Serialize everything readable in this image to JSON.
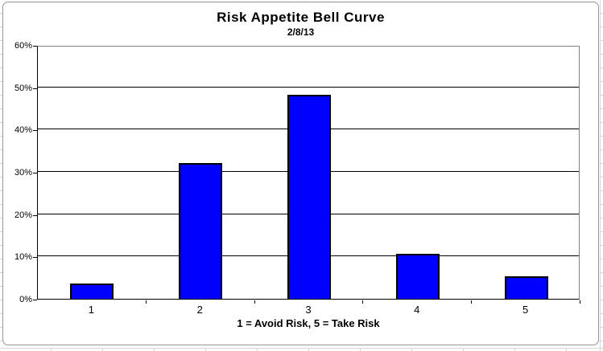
{
  "chart_data": {
    "type": "bar",
    "title": "Risk Appetite Bell Curve",
    "subtitle": "2/8/13",
    "categories": [
      "1",
      "2",
      "3",
      "4",
      "5"
    ],
    "values": [
      3.6,
      32.1,
      48.2,
      10.7,
      5.4
    ],
    "xlabel": "1 = Avoid Risk, 5 = Take Risk",
    "ylabel": "",
    "ylim": [
      0,
      60
    ],
    "y_ticks": [
      "0%",
      "10%",
      "20%",
      "30%",
      "40%",
      "50%",
      "60%"
    ],
    "y_tick_values": [
      0,
      10,
      20,
      30,
      40,
      50,
      60
    ],
    "grid": "horizontal",
    "legend": "none",
    "bar_color": "#0000ff",
    "bar_border_color": "#000000",
    "gridline_color": "#000000",
    "plot_border_color": "#808080",
    "chart_background": "#ffffff"
  }
}
